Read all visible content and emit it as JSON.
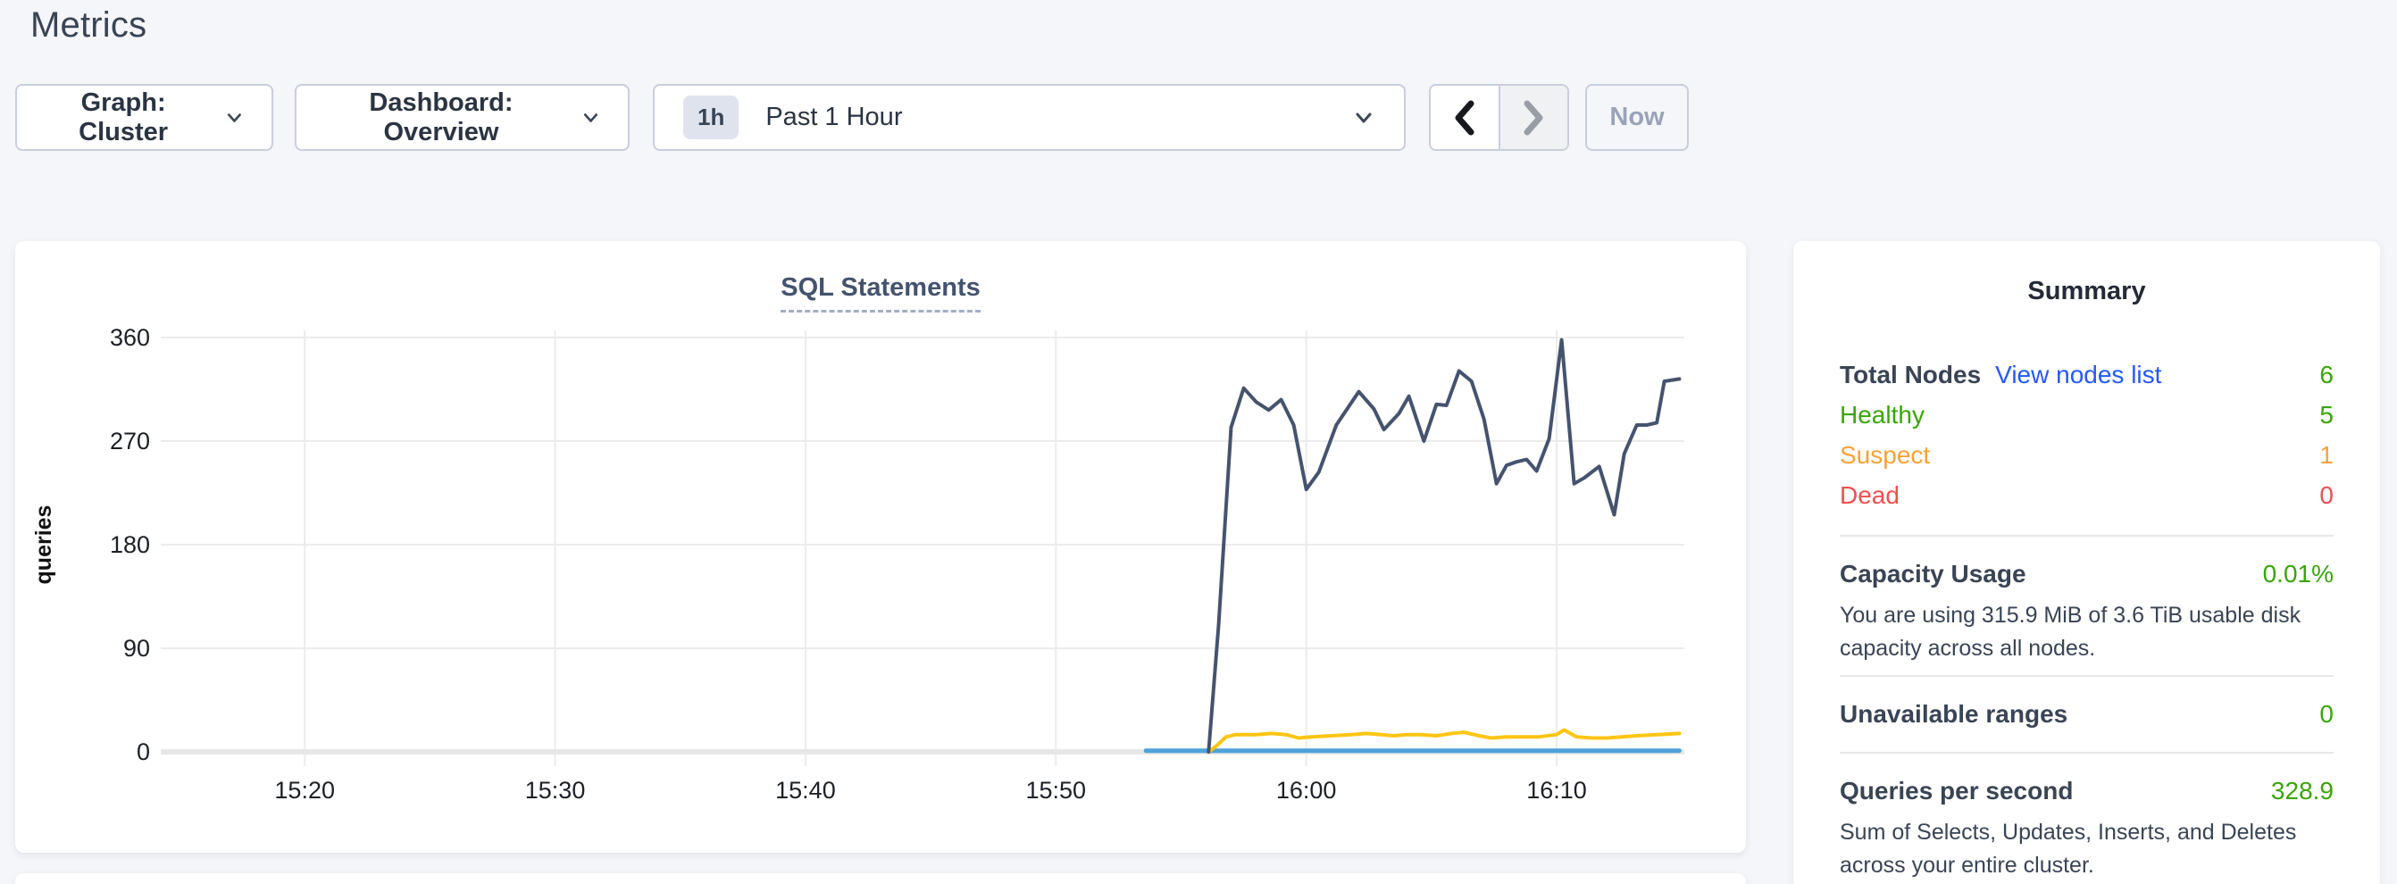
{
  "page": {
    "title": "Metrics",
    "background": "#f5f6fa"
  },
  "toolbar": {
    "graph_dropdown": {
      "label": "Graph: Cluster"
    },
    "dashboard_dropdown": {
      "label": "Dashboard: Overview"
    },
    "time_selector": {
      "badge": "1h",
      "label": "Past 1 Hour"
    },
    "prev_button_icon": "chevron-left",
    "next_button_icon": "chevron-right",
    "now_label": "Now"
  },
  "chart_data": {
    "type": "line",
    "title": "SQL Statements",
    "xlabel": "",
    "ylabel": "queries",
    "ylim": [
      0,
      360
    ],
    "yticks": [
      0,
      90,
      180,
      270,
      360
    ],
    "xticks": [
      "15:20",
      "15:30",
      "15:40",
      "15:50",
      "16:00",
      "16:10"
    ],
    "xtick_minutes": [
      20,
      30,
      40,
      50,
      60,
      70
    ],
    "xlim_minutes": [
      14.25,
      75.1
    ],
    "grid": true,
    "legend_position": "none",
    "series": [
      {
        "name": "line-1",
        "color": "#45536e",
        "width": 4,
        "points": [
          [
            56.1,
            0
          ],
          [
            56.5,
            110
          ],
          [
            57.0,
            282
          ],
          [
            57.5,
            316
          ],
          [
            58.0,
            304
          ],
          [
            58.5,
            297
          ],
          [
            59.0,
            306
          ],
          [
            59.5,
            284
          ],
          [
            60.0,
            228
          ],
          [
            60.5,
            243
          ],
          [
            61.2,
            284
          ],
          [
            62.1,
            313
          ],
          [
            62.7,
            298
          ],
          [
            63.1,
            280
          ],
          [
            63.7,
            294
          ],
          [
            64.1,
            309
          ],
          [
            64.7,
            270
          ],
          [
            65.2,
            302
          ],
          [
            65.6,
            301
          ],
          [
            66.1,
            331
          ],
          [
            66.6,
            322
          ],
          [
            67.1,
            289
          ],
          [
            67.6,
            233
          ],
          [
            68.0,
            249
          ],
          [
            68.4,
            252
          ],
          [
            68.8,
            254
          ],
          [
            69.2,
            244
          ],
          [
            69.7,
            272
          ],
          [
            70.2,
            358
          ],
          [
            70.7,
            233
          ],
          [
            71.1,
            238
          ],
          [
            71.7,
            248
          ],
          [
            72.3,
            206
          ],
          [
            72.7,
            259
          ],
          [
            73.2,
            284
          ],
          [
            73.6,
            284
          ],
          [
            74.0,
            286
          ],
          [
            74.3,
            322
          ],
          [
            74.9,
            324
          ]
        ]
      },
      {
        "name": "line-2",
        "color": "#fdc513",
        "width": 4,
        "points": [
          [
            56.1,
            0
          ],
          [
            56.4,
            5
          ],
          [
            56.8,
            13
          ],
          [
            57.2,
            15
          ],
          [
            58.0,
            15
          ],
          [
            58.6,
            16
          ],
          [
            59.2,
            15
          ],
          [
            59.7,
            12
          ],
          [
            60.2,
            13
          ],
          [
            61.0,
            14
          ],
          [
            61.8,
            15
          ],
          [
            62.4,
            16
          ],
          [
            63.0,
            15
          ],
          [
            63.5,
            14
          ],
          [
            64.0,
            15
          ],
          [
            64.6,
            15
          ],
          [
            65.2,
            14
          ],
          [
            65.8,
            16
          ],
          [
            66.3,
            17
          ],
          [
            66.9,
            14
          ],
          [
            67.4,
            12
          ],
          [
            68.0,
            13
          ],
          [
            68.6,
            13
          ],
          [
            69.3,
            13
          ],
          [
            70.0,
            15
          ],
          [
            70.3,
            19
          ],
          [
            70.8,
            13
          ],
          [
            71.4,
            12
          ],
          [
            72.0,
            12
          ],
          [
            72.6,
            13
          ],
          [
            73.2,
            14
          ],
          [
            74.0,
            15
          ],
          [
            74.9,
            16
          ]
        ]
      },
      {
        "name": "line-3",
        "color": "#4da1d9",
        "width": 5,
        "points": [
          [
            53.6,
            1
          ],
          [
            74.9,
            1
          ]
        ]
      }
    ]
  },
  "summary": {
    "title": "Summary",
    "nodes": {
      "total_label": "Total Nodes",
      "link": "View nodes list",
      "total_value": "6",
      "rows": [
        {
          "label": "Healthy",
          "value": "5",
          "color": "#3aa40a"
        },
        {
          "label": "Suspect",
          "value": "1",
          "color": "#f7a237"
        },
        {
          "label": "Dead",
          "value": "0",
          "color": "#f14e4e"
        }
      ]
    },
    "capacity": {
      "label": "Capacity Usage",
      "value": "0.01%",
      "description": "You are using 315.9 MiB of 3.6 TiB usable disk capacity across all nodes."
    },
    "unavailable_ranges": {
      "label": "Unavailable ranges",
      "value": "0"
    },
    "qps": {
      "label": "Queries per second",
      "value": "328.9",
      "description": "Sum of Selects, Updates, Inserts, and Deletes across your entire cluster."
    }
  },
  "colors": {
    "accent_link": "#2458ff",
    "status_green": "#3aa40a",
    "status_orange": "#f7a237",
    "status_red": "#f14e4e",
    "line_navy": "#45536e",
    "line_yellow": "#fdc513",
    "line_blue": "#4da1d9"
  }
}
